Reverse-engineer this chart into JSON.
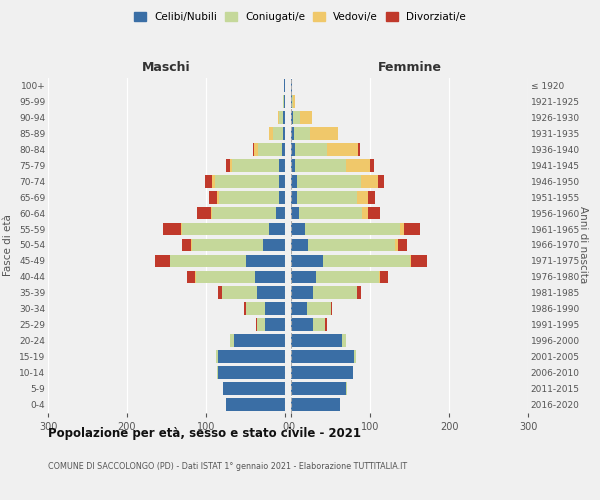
{
  "age_groups": [
    "0-4",
    "5-9",
    "10-14",
    "15-19",
    "20-24",
    "25-29",
    "30-34",
    "35-39",
    "40-44",
    "45-49",
    "50-54",
    "55-59",
    "60-64",
    "65-69",
    "70-74",
    "75-79",
    "80-84",
    "85-89",
    "90-94",
    "95-99",
    "100+"
  ],
  "birth_years": [
    "2016-2020",
    "2011-2015",
    "2006-2010",
    "2001-2005",
    "1996-2000",
    "1991-1995",
    "1986-1990",
    "1981-1985",
    "1976-1980",
    "1971-1975",
    "1966-1970",
    "1961-1965",
    "1956-1960",
    "1951-1955",
    "1946-1950",
    "1941-1945",
    "1936-1940",
    "1931-1935",
    "1926-1930",
    "1921-1925",
    "≤ 1920"
  ],
  "male": {
    "celibe": [
      75,
      78,
      85,
      85,
      65,
      25,
      25,
      35,
      38,
      50,
      28,
      20,
      12,
      8,
      8,
      7,
      4,
      3,
      2,
      1,
      1
    ],
    "coniugato": [
      0,
      1,
      1,
      2,
      5,
      10,
      25,
      45,
      75,
      95,
      90,
      110,
      80,
      75,
      80,
      60,
      30,
      12,
      5,
      1,
      0
    ],
    "vedovo": [
      0,
      0,
      0,
      0,
      0,
      0,
      0,
      0,
      1,
      1,
      1,
      2,
      2,
      3,
      5,
      3,
      5,
      5,
      2,
      0,
      0
    ],
    "divorziato": [
      0,
      0,
      0,
      0,
      0,
      2,
      2,
      5,
      10,
      18,
      12,
      22,
      18,
      10,
      8,
      5,
      2,
      0,
      0,
      0,
      0
    ]
  },
  "female": {
    "nubile": [
      62,
      70,
      78,
      80,
      65,
      28,
      20,
      28,
      32,
      40,
      22,
      18,
      10,
      8,
      8,
      5,
      5,
      4,
      3,
      1,
      1
    ],
    "coniugata": [
      0,
      1,
      1,
      2,
      5,
      15,
      30,
      55,
      80,
      110,
      110,
      120,
      80,
      75,
      80,
      65,
      40,
      20,
      8,
      2,
      0
    ],
    "vedova": [
      0,
      0,
      0,
      0,
      0,
      0,
      0,
      0,
      1,
      2,
      3,
      5,
      8,
      15,
      22,
      30,
      40,
      35,
      15,
      2,
      0
    ],
    "divorziata": [
      0,
      0,
      0,
      0,
      0,
      2,
      2,
      5,
      10,
      20,
      12,
      20,
      15,
      8,
      8,
      5,
      2,
      0,
      0,
      0,
      0
    ]
  },
  "colors": {
    "celibe": "#3A6EA5",
    "coniugato": "#C5D89A",
    "vedovo": "#F0C86A",
    "divorziato": "#C0392B"
  },
  "xlim": 300,
  "title": "Popolazione per età, sesso e stato civile - 2021",
  "subtitle": "COMUNE DI SACCOLONGO (PD) - Dati ISTAT 1° gennaio 2021 - Elaborazione TUTTITALIA.IT",
  "ylabel_left": "Fasce di età",
  "ylabel_right": "Anni di nascita",
  "label_maschi": "Maschi",
  "label_femmine": "Femmine",
  "legend_labels": [
    "Celibi/Nubili",
    "Coniugati/e",
    "Vedovi/e",
    "Divorziati/e"
  ],
  "bg_color": "#f0f0f0",
  "xticks": [
    0,
    100,
    200,
    300
  ]
}
